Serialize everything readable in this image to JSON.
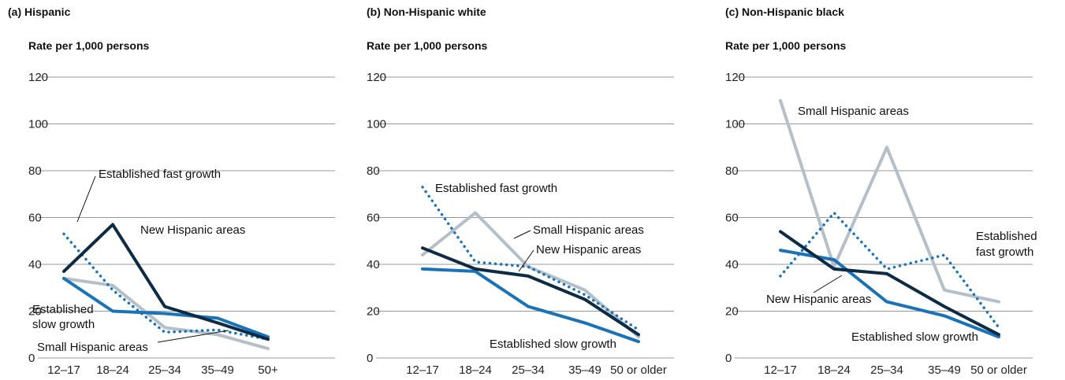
{
  "colors": {
    "new": "#0d2b45",
    "slow": "#1a73b8",
    "fast": "#1a73b8",
    "small": "#b4bfc7"
  },
  "chart_data": [
    {
      "type": "line",
      "title": "(a) Hispanic",
      "ylabel": "Rate per 1,000 persons",
      "ylim": [
        0,
        120
      ],
      "yticks": [
        0,
        20,
        40,
        60,
        80,
        100,
        120
      ],
      "categories": [
        "12–17",
        "18–24",
        "25–34",
        "35–49",
        "50+"
      ],
      "series": [
        {
          "key": "new",
          "name": "New Hispanic areas",
          "values": [
            37,
            57,
            22,
            15,
            8
          ]
        },
        {
          "key": "slow",
          "name": "Established slow growth",
          "values": [
            34,
            20,
            19,
            17,
            9
          ]
        },
        {
          "key": "fast",
          "name": "Established fast growth",
          "values": [
            53,
            29,
            11,
            12,
            8
          ]
        },
        {
          "key": "small",
          "name": "Small Hispanic areas",
          "values": [
            34,
            31,
            13,
            10,
            4
          ]
        }
      ],
      "annotations": [
        {
          "lines": [
            "Established fast growth"
          ]
        },
        {
          "lines": [
            "New Hispanic areas"
          ]
        },
        {
          "lines": [
            "Established",
            "slow growth"
          ]
        },
        {
          "lines": [
            "Small Hispanic areas"
          ]
        }
      ]
    },
    {
      "type": "line",
      "title": "(b) Non-Hispanic white",
      "ylabel": "Rate per 1,000 persons",
      "ylim": [
        0,
        120
      ],
      "yticks": [
        0,
        20,
        40,
        60,
        80,
        100,
        120
      ],
      "categories": [
        "12–17",
        "18–24",
        "25–34",
        "35–49",
        "50 or older"
      ],
      "series": [
        {
          "key": "new",
          "name": "New Hispanic areas",
          "values": [
            47,
            38,
            35,
            25,
            10
          ]
        },
        {
          "key": "slow",
          "name": "Established slow growth",
          "values": [
            38,
            37,
            22,
            15,
            7
          ]
        },
        {
          "key": "fast",
          "name": "Established fast growth",
          "values": [
            73,
            41,
            39,
            27,
            12
          ]
        },
        {
          "key": "small",
          "name": "Small Hispanic areas",
          "values": [
            44,
            62,
            39,
            29,
            9
          ]
        }
      ],
      "annotations": [
        {
          "lines": [
            "Established fast growth"
          ]
        },
        {
          "lines": [
            "Small Hispanic areas"
          ]
        },
        {
          "lines": [
            "New Hispanic areas"
          ]
        },
        {
          "lines": [
            "Established slow growth"
          ]
        }
      ]
    },
    {
      "type": "line",
      "title": "(c) Non-Hispanic black",
      "ylabel": "Rate per 1,000 persons",
      "ylim": [
        0,
        120
      ],
      "yticks": [
        0,
        20,
        40,
        60,
        80,
        100,
        120
      ],
      "categories": [
        "12–17",
        "18–24",
        "25–34",
        "35–49",
        "50 or older"
      ],
      "series": [
        {
          "key": "new",
          "name": "New Hispanic areas",
          "values": [
            54,
            38,
            36,
            22,
            10
          ]
        },
        {
          "key": "slow",
          "name": "Established slow growth",
          "values": [
            46,
            42,
            24,
            18,
            9
          ]
        },
        {
          "key": "fast",
          "name": "Established fast growth",
          "values": [
            35,
            62,
            38,
            44,
            13
          ]
        },
        {
          "key": "small",
          "name": "Small Hispanic areas",
          "values": [
            110,
            39,
            90,
            29,
            24
          ]
        }
      ],
      "annotations": [
        {
          "lines": [
            "Small Hispanic areas"
          ]
        },
        {
          "lines": [
            "Established",
            "fast growth"
          ]
        },
        {
          "lines": [
            "New Hispanic areas"
          ]
        },
        {
          "lines": [
            "Established slow growth"
          ]
        }
      ]
    }
  ]
}
